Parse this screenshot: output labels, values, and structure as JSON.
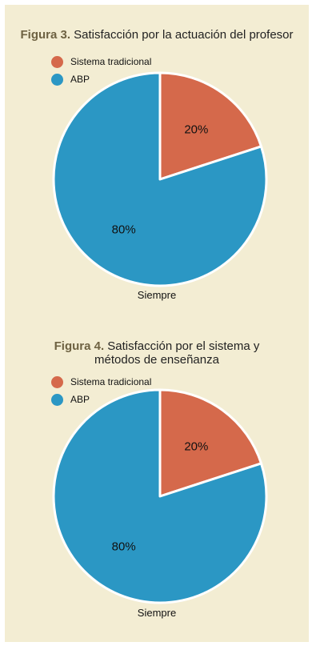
{
  "chart_data": [
    {
      "type": "pie",
      "title_label": "Figura 3.",
      "title": "Satisfacción por la actuación del profesor",
      "title_line2": "",
      "categories": [
        "Sistema tradicional",
        "ABP"
      ],
      "values": [
        20,
        80
      ],
      "data_labels": [
        "20%",
        "80%"
      ],
      "colors": [
        "#d5694b",
        "#2b97c4"
      ],
      "xlabel": "Siempre",
      "legend_position": "top-left"
    },
    {
      "type": "pie",
      "title_label": "Figura 4.",
      "title": "Satisfacción por el sistema y",
      "title_line2": "métodos de enseñanza",
      "categories": [
        "Sistema tradicional",
        "ABP"
      ],
      "values": [
        20,
        80
      ],
      "data_labels": [
        "20%",
        "80%"
      ],
      "colors": [
        "#d5694b",
        "#2b97c4"
      ],
      "xlabel": "Siempre",
      "legend_position": "top-left"
    }
  ]
}
